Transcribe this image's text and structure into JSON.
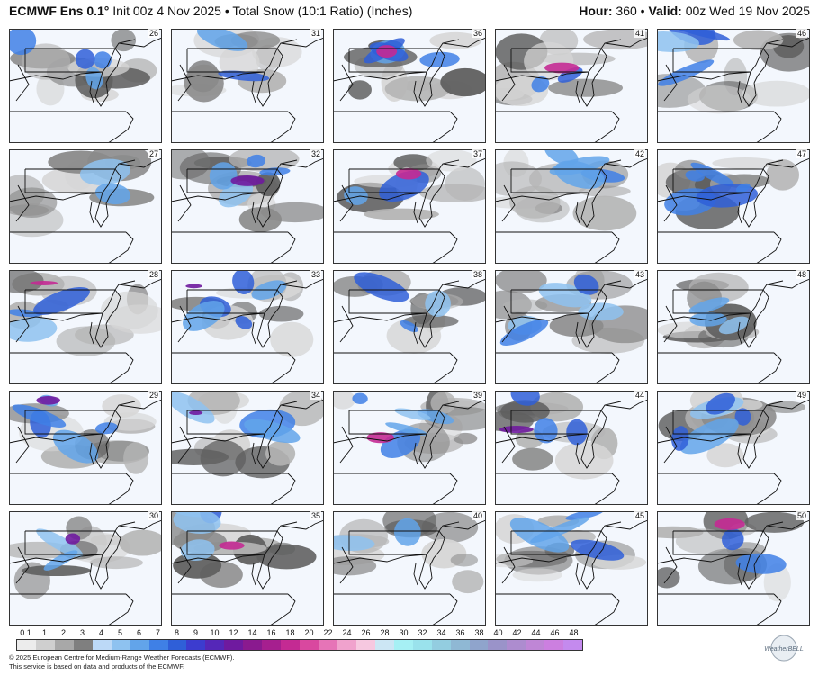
{
  "header": {
    "model": "ECMWF Ens 0.1°",
    "init": "Init 00z 4 Nov 2025",
    "product": "Total Snow (10:1 Ratio) (Inches)",
    "hour_label": "Hour:",
    "hour_value": "360",
    "valid_label": "Valid:",
    "valid_value": "00z Wed 19 Nov 2025"
  },
  "members": [
    "26",
    "31",
    "36",
    "41",
    "46",
    "27",
    "32",
    "37",
    "42",
    "47",
    "28",
    "33",
    "38",
    "43",
    "48",
    "29",
    "34",
    "39",
    "44",
    "49",
    "30",
    "35",
    "40",
    "45",
    "50"
  ],
  "scale": {
    "labels": [
      "0.1",
      "1",
      "2",
      "3",
      "4",
      "5",
      "6",
      "7",
      "8",
      "9",
      "10",
      "12",
      "14",
      "16",
      "18",
      "20",
      "22",
      "24",
      "26",
      "28",
      "30",
      "32",
      "34",
      "36",
      "38",
      "40",
      "42",
      "44",
      "46",
      "48"
    ],
    "colors": [
      "#ececec",
      "#cfcfcf",
      "#a8a8a8",
      "#7f7f7f",
      "#bcd9f7",
      "#8ec2f0",
      "#62a4ea",
      "#3f80e6",
      "#2f5fd8",
      "#3c3ccf",
      "#5527b8",
      "#6f1a9f",
      "#8a1a8f",
      "#a61f8f",
      "#c42a93",
      "#d9489f",
      "#e674b7",
      "#f0a2cd",
      "#f6c8e0",
      "#cce6f4",
      "#a6f0f4",
      "#9ae2ec",
      "#93cde0",
      "#8fb8d4",
      "#8fa4cc",
      "#9a93c9",
      "#ad8ccf",
      "#bf86d6",
      "#cc7fe0",
      "#c48aee"
    ]
  },
  "colors": {
    "land": "#f3f7fd",
    "coast": "#111111",
    "frame": "#333333"
  },
  "footer": {
    "line1": "© 2025 European Centre for Medium-Range Weather Forecasts (ECMWF).",
    "line2": "This service is based on data and products of the ECMWF.",
    "logo_text": "WeatherBELL"
  }
}
